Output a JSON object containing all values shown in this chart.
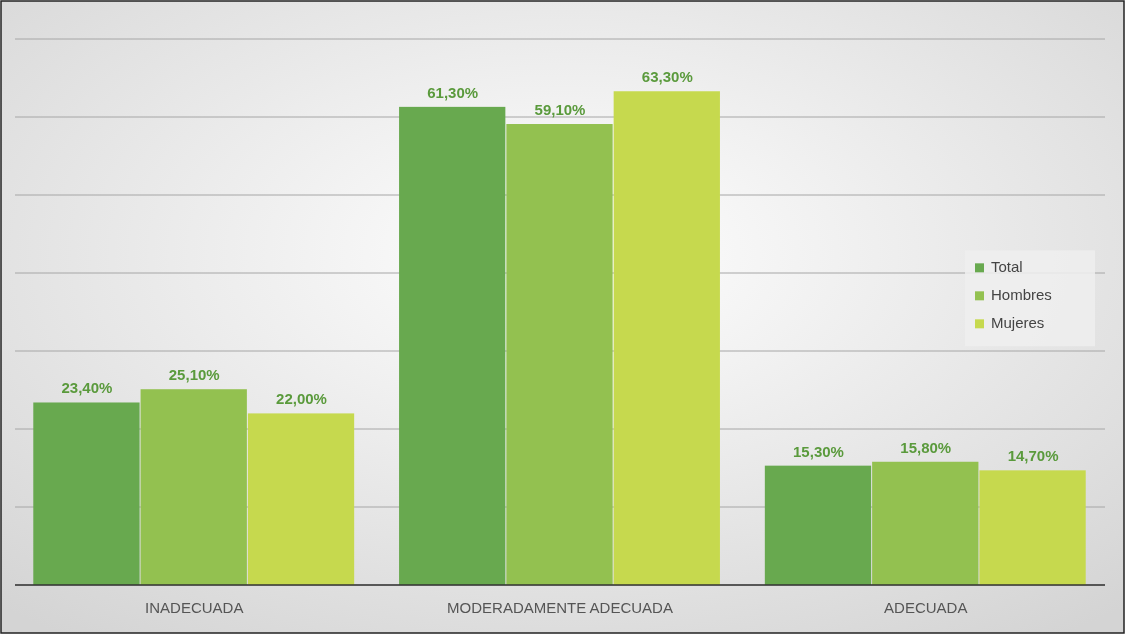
{
  "chart_data": {
    "type": "bar",
    "categories": [
      "INADECUADA",
      "MODERADAMENTE ADECUADA",
      "ADECUADA"
    ],
    "series": [
      {
        "name": "Total",
        "color": "#68a94f",
        "values": [
          23.4,
          61.3,
          15.3
        ],
        "value_labels": [
          "23,40%",
          "61,30%",
          "15,30%"
        ]
      },
      {
        "name": "Hombres",
        "color": "#93c150",
        "values": [
          25.1,
          59.1,
          15.8
        ],
        "value_labels": [
          "25,10%",
          "59,10%",
          "15,80%"
        ]
      },
      {
        "name": "Mujeres",
        "color": "#c6d94e",
        "values": [
          22.0,
          63.3,
          14.7
        ],
        "value_labels": [
          "22,00%",
          "63,30%",
          "14,70%"
        ]
      }
    ],
    "ylim": [
      0,
      70
    ],
    "yticks": [
      {
        "value": 0,
        "label": null
      },
      {
        "value": 10,
        "label": null
      },
      {
        "value": 20,
        "label": null
      },
      {
        "value": 30,
        "label": null
      },
      {
        "value": 40,
        "label": null
      },
      {
        "value": 50,
        "label": null
      },
      {
        "value": 60,
        "label": null
      },
      {
        "value": 70,
        "label": null
      }
    ],
    "tick_labels": "x",
    "grid": "y",
    "legend": "right"
  }
}
